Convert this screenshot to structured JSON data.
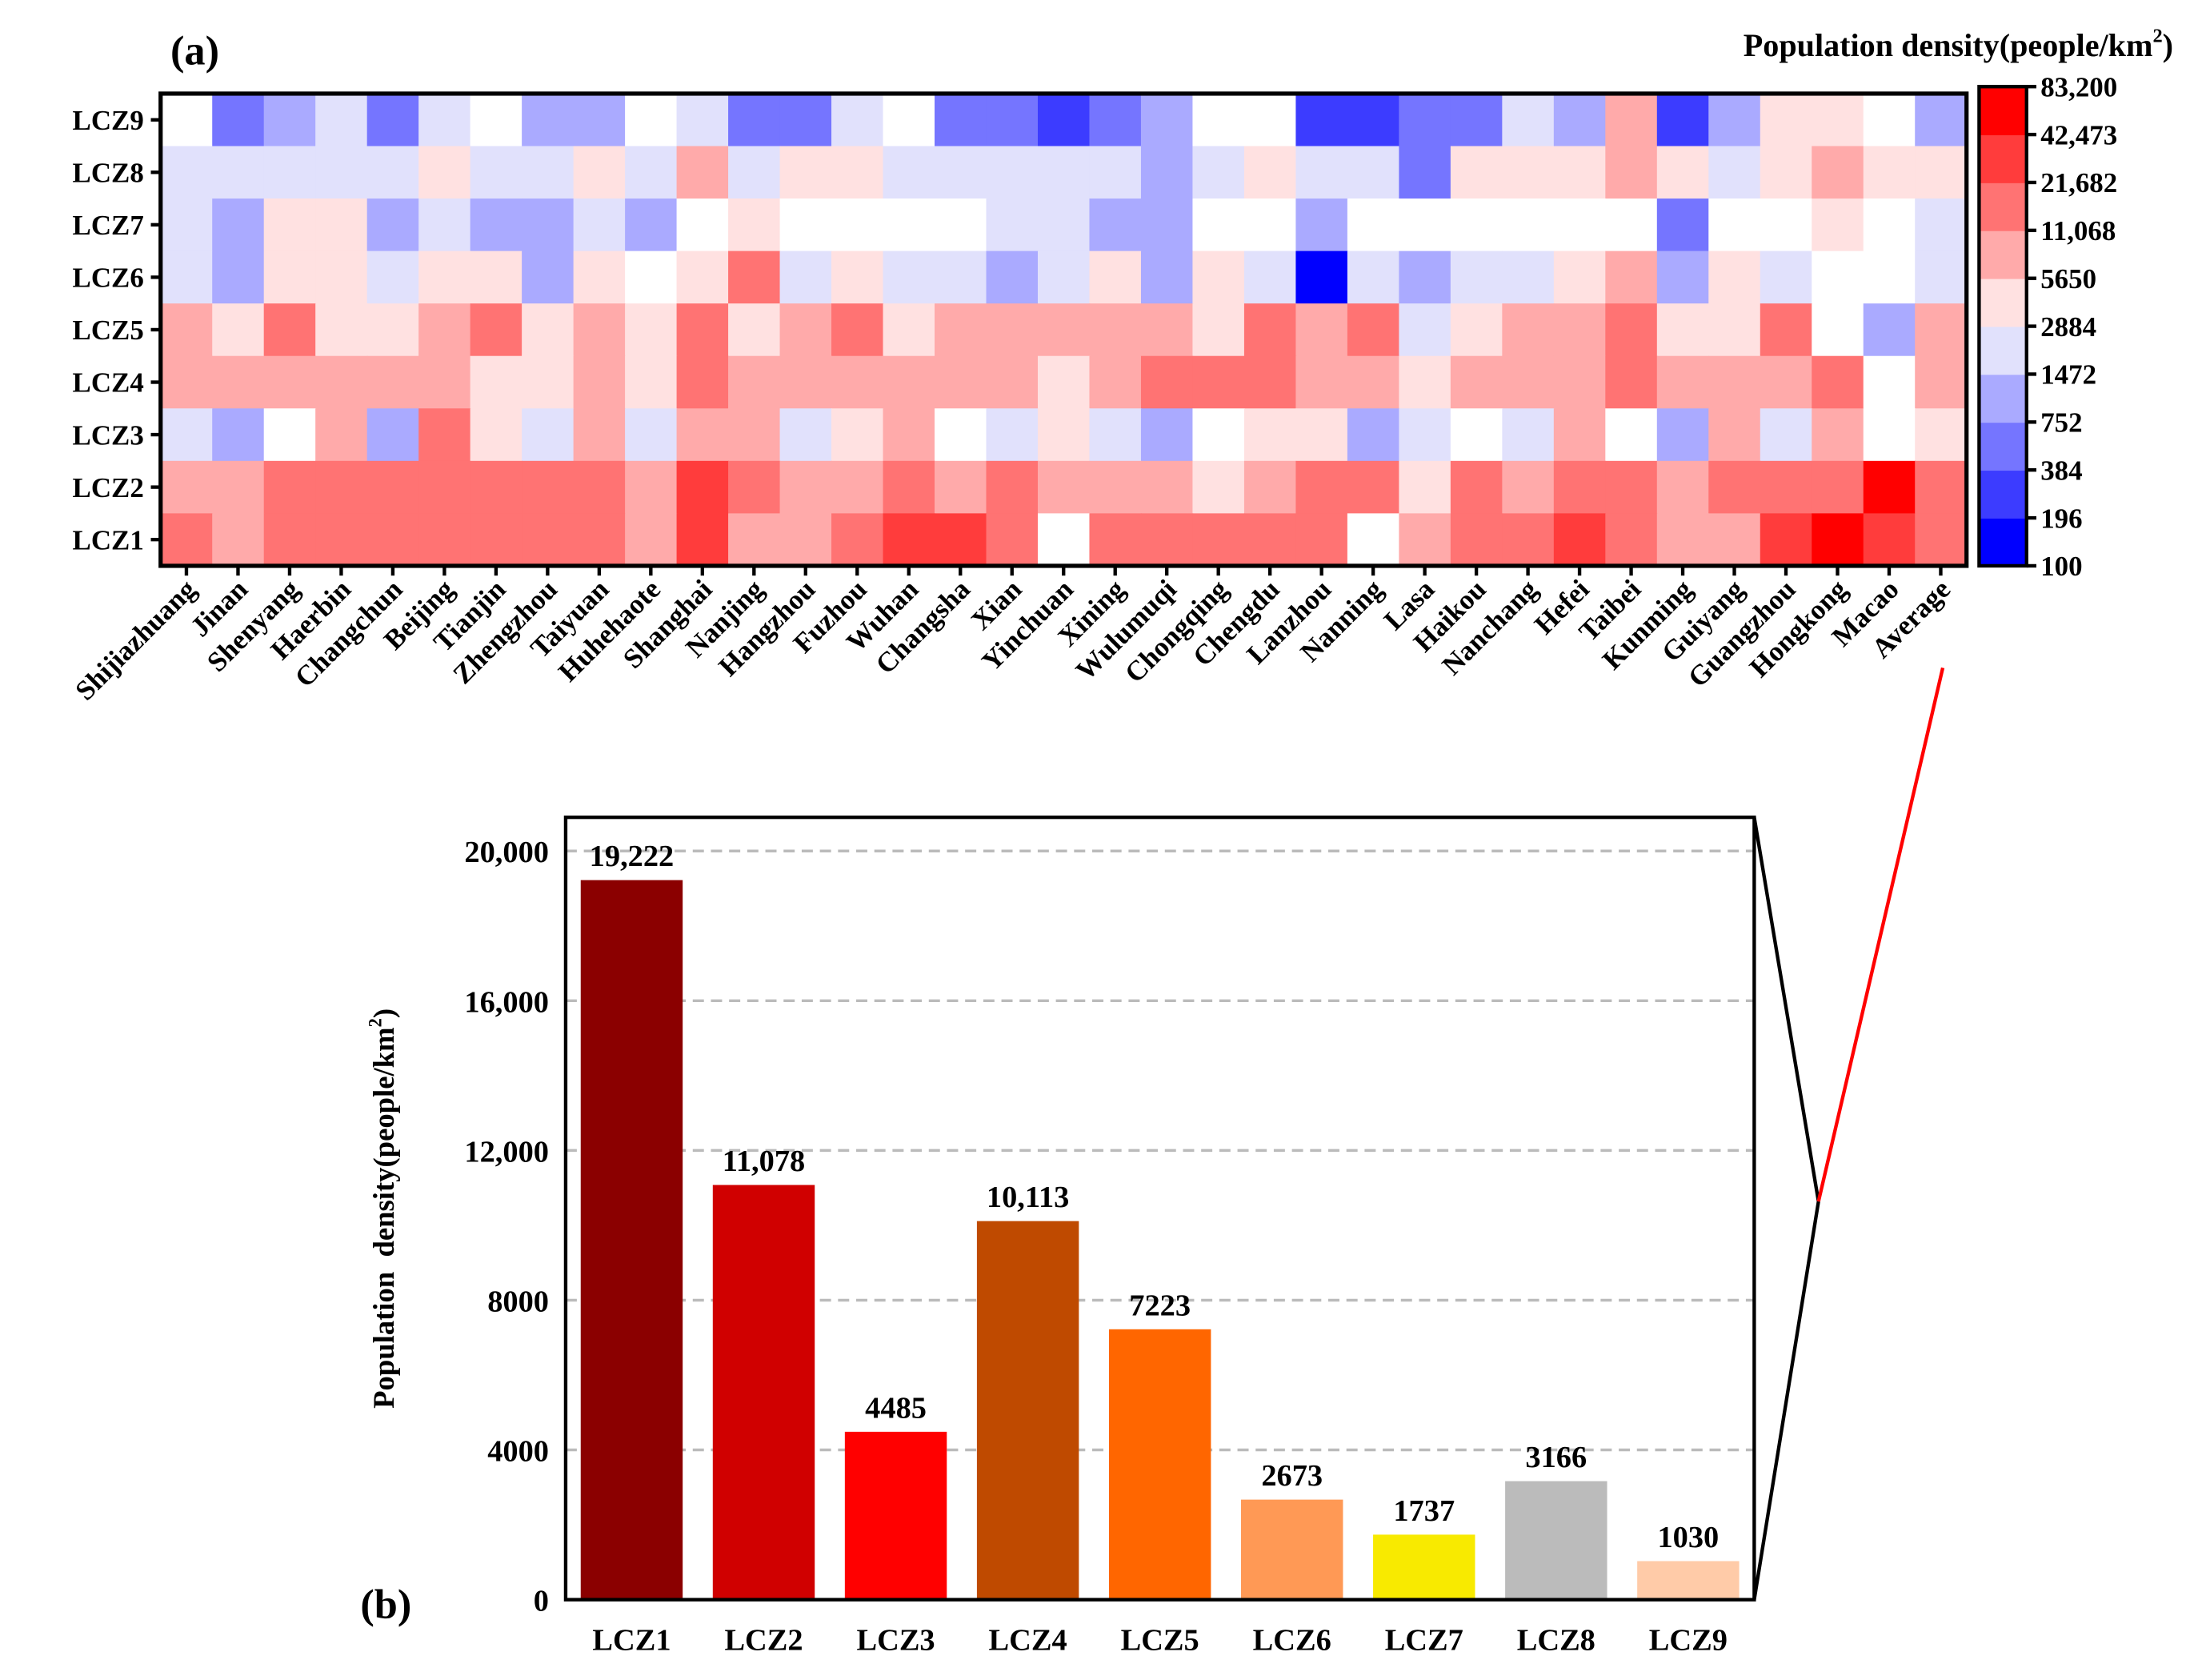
{
  "chart_data": [
    {
      "type": "heatmap",
      "panel_label": "(a)",
      "colorbar_title": "Population density(people/km",
      "colorbar_title_sup": "2",
      "colorbar_title_end": ")",
      "rows": [
        "LCZ9",
        "LCZ8",
        "LCZ7",
        "LCZ6",
        "LCZ5",
        "LCZ4",
        "LCZ3",
        "LCZ2",
        "LCZ1"
      ],
      "columns": [
        "Shijiazhuang",
        "Jinan",
        "Shenyang",
        "Haerbin",
        "Changchun",
        "Beijing",
        "Tianjin",
        "Zhengzhou",
        "Taiyuan",
        "Huhehaote",
        "Shanghai",
        "Nanjing",
        "Hangzhou",
        "Fuzhou",
        "Wuhan",
        "Changsha",
        "Xian",
        "Yinchuan",
        "Xining",
        "Wulumuqi",
        "Chongqing",
        "Chengdu",
        "Lanzhou",
        "Nanning",
        "Lasa",
        "Haikou",
        "Nanchang",
        "Hefei",
        "Taibei",
        "Kunming",
        "Guiyang",
        "Guangzhou",
        "Hongkong",
        "Macao",
        "Average"
      ],
      "bin_note": "cell values are colour-bin indices 0-9 (bin i spans breaks[i]..breaks[i+1]); -1 = no data (white)",
      "breaks": [
        "100",
        "196",
        "384",
        "752",
        "1472",
        "2884",
        "5650",
        "11,068",
        "21,682",
        "42,473",
        "83,200"
      ],
      "bin_colors": [
        "#0000ff",
        "#3c3cff",
        "#7575ff",
        "#aaaaff",
        "#e1e1fc",
        "#ffe1e1",
        "#ffaaaa",
        "#ff7373",
        "#ff3c3c",
        "#ff0000"
      ],
      "nodata_color": "#ffffff",
      "bins": [
        [
          -1,
          2,
          3,
          4,
          2,
          4,
          -1,
          3,
          3,
          -1,
          4,
          2,
          2,
          4,
          -1,
          2,
          2,
          1,
          2,
          3,
          -1,
          -1,
          1,
          1,
          2,
          2,
          4,
          3,
          6,
          1,
          3,
          5,
          5,
          -1,
          3
        ],
        [
          4,
          4,
          4,
          4,
          4,
          5,
          4,
          4,
          5,
          4,
          6,
          4,
          5,
          5,
          4,
          4,
          4,
          4,
          4,
          3,
          4,
          5,
          4,
          4,
          2,
          5,
          5,
          5,
          6,
          5,
          4,
          5,
          6,
          5,
          5
        ],
        [
          4,
          3,
          5,
          5,
          3,
          4,
          3,
          3,
          4,
          3,
          -1,
          5,
          -1,
          -1,
          -1,
          -1,
          4,
          4,
          3,
          3,
          -1,
          -1,
          3,
          -1,
          -1,
          -1,
          -1,
          -1,
          -1,
          2,
          -1,
          -1,
          5,
          -1,
          4
        ],
        [
          4,
          3,
          5,
          5,
          4,
          5,
          5,
          3,
          5,
          -1,
          5,
          7,
          4,
          5,
          4,
          4,
          3,
          4,
          5,
          3,
          5,
          4,
          0,
          4,
          3,
          4,
          4,
          5,
          6,
          3,
          5,
          4,
          -1,
          -1,
          4
        ],
        [
          6,
          5,
          7,
          5,
          5,
          6,
          7,
          5,
          6,
          5,
          7,
          5,
          6,
          7,
          5,
          6,
          6,
          6,
          6,
          6,
          5,
          7,
          6,
          7,
          4,
          5,
          6,
          6,
          7,
          5,
          5,
          7,
          -1,
          3,
          6
        ],
        [
          6,
          6,
          6,
          6,
          6,
          6,
          5,
          5,
          6,
          5,
          7,
          6,
          6,
          6,
          6,
          6,
          6,
          5,
          6,
          7,
          7,
          7,
          6,
          6,
          5,
          6,
          6,
          6,
          7,
          6,
          6,
          6,
          7,
          -1,
          6
        ],
        [
          4,
          3,
          -1,
          6,
          3,
          7,
          5,
          4,
          6,
          4,
          6,
          6,
          4,
          5,
          6,
          -1,
          4,
          5,
          4,
          3,
          -1,
          5,
          5,
          3,
          4,
          -1,
          4,
          6,
          -1,
          3,
          6,
          4,
          6,
          -1,
          5
        ],
        [
          6,
          6,
          7,
          7,
          7,
          7,
          7,
          7,
          7,
          6,
          8,
          7,
          6,
          6,
          7,
          6,
          7,
          6,
          6,
          6,
          5,
          6,
          7,
          7,
          5,
          7,
          6,
          7,
          7,
          6,
          7,
          7,
          7,
          9,
          7
        ],
        [
          7,
          6,
          7,
          7,
          7,
          7,
          7,
          7,
          7,
          6,
          8,
          6,
          6,
          7,
          8,
          8,
          7,
          -1,
          7,
          7,
          7,
          7,
          7,
          -1,
          6,
          7,
          7,
          8,
          7,
          6,
          6,
          8,
          9,
          8,
          7
        ]
      ]
    },
    {
      "type": "bar",
      "panel_label": "(b)",
      "ylabel": "Population  density(people/km",
      "ylabel_sup": "2",
      "ylabel_end": ")",
      "categories": [
        "LCZ1",
        "LCZ2",
        "LCZ3",
        "LCZ4",
        "LCZ5",
        "LCZ6",
        "LCZ7",
        "LCZ8",
        "LCZ9"
      ],
      "values": [
        19222,
        11078,
        4485,
        10113,
        7223,
        2673,
        1737,
        3166,
        1030
      ],
      "value_labels": [
        "19,222",
        "11,078",
        "4485",
        "10,113",
        "7223",
        "2673",
        "1737",
        "3166",
        "1030"
      ],
      "colors": [
        "#8b0000",
        "#d00000",
        "#ff0000",
        "#bf4a00",
        "#ff6600",
        "#ff9955",
        "#f8ea00",
        "#bbbbbb",
        "#ffcba8"
      ],
      "yticks": [
        0,
        4000,
        8000,
        12000,
        16000,
        20000
      ],
      "ytick_labels": [
        "0",
        "4000",
        "8000",
        "12,000",
        "16,000",
        "20,000"
      ],
      "ylim": [
        0,
        20900
      ],
      "grid": "horizontal dashed"
    }
  ]
}
